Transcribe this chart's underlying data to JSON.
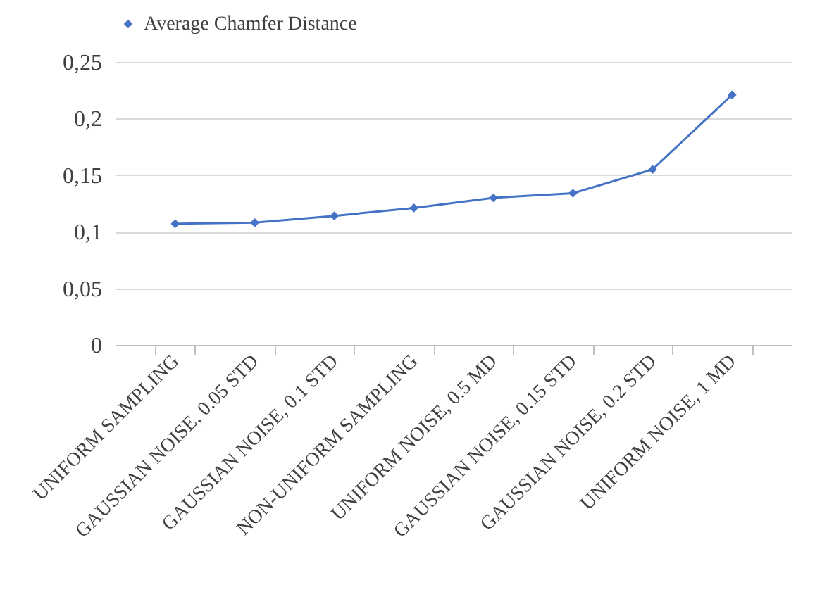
{
  "chart_data": {
    "type": "line",
    "categories": [
      "UNIFORM SAMPLING",
      "GAUSSIAN NOISE, 0.05 STD",
      "GAUSSIAN NOISE, 0.1 STD",
      "NON-UNIFORM SAMPLING",
      "UNIFORM NOISE, 0.5 MD",
      "GAUSSIAN NOISE, 0.15 STD",
      "GAUSSIAN NOISE, 0.2 STD",
      "UNIFORM NOISE, 1 MD"
    ],
    "series": [
      {
        "name": "Average Chamfer Distance",
        "color": "#4472c4",
        "values": [
          0.107,
          0.108,
          0.114,
          0.121,
          0.13,
          0.134,
          0.155,
          0.221
        ]
      }
    ],
    "ylim": [
      0,
      0.25
    ],
    "yticks": [
      0,
      {
        "value": 0.05,
        "label": "0,05"
      },
      {
        "value": 0.1,
        "label": "0,1"
      },
      {
        "value": 0.15,
        "label": "0,15"
      },
      {
        "value": 0.2,
        "label": "0,2"
      },
      {
        "value": 0.25,
        "label": "0,25"
      }
    ],
    "grid": "y",
    "legend": "top",
    "marker": "diamond",
    "line_style": "solid"
  }
}
